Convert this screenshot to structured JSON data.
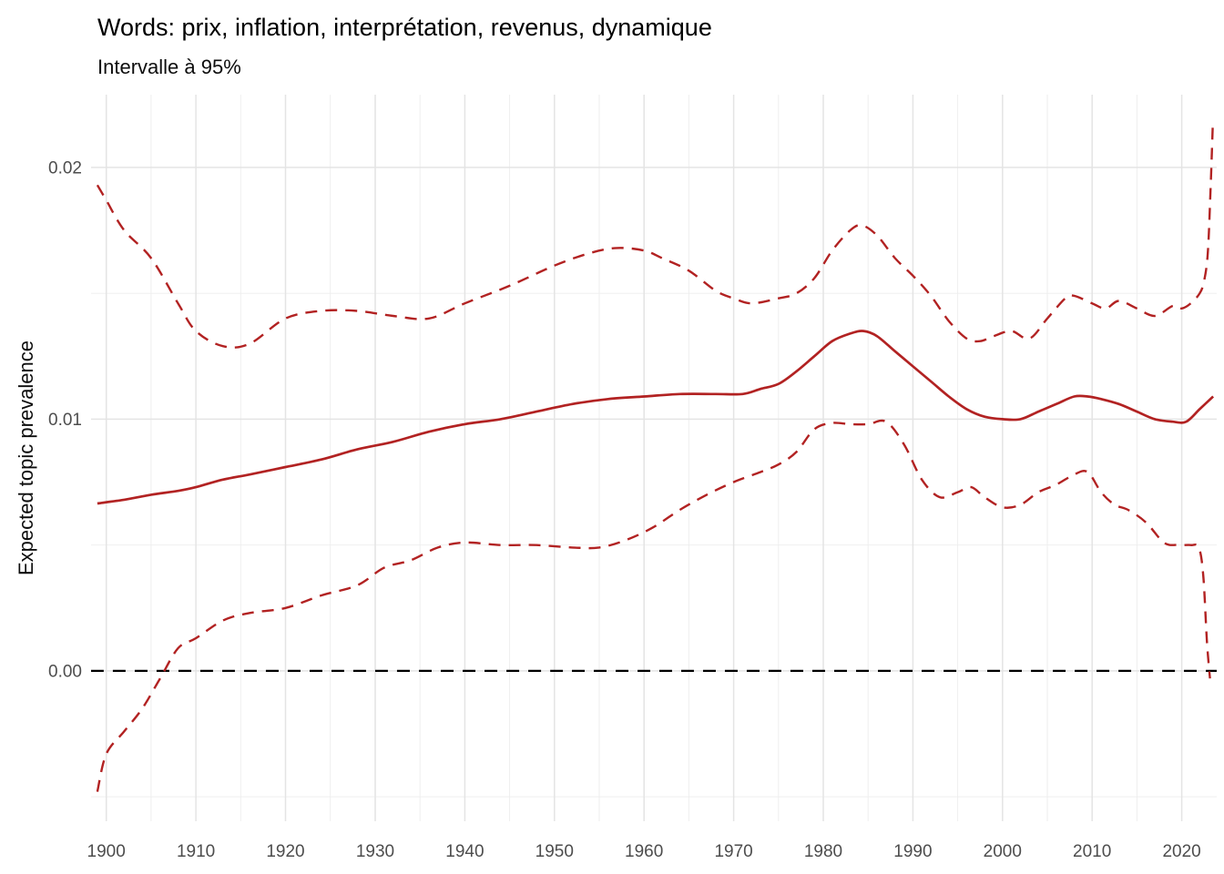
{
  "chart_data": {
    "type": "line",
    "title": "Words: prix, inflation, interprétation, revenus, dynamique",
    "subtitle": "Intervalle à 95%",
    "xlabel": "",
    "ylabel": "Expected topic prevalence",
    "legend_position": "none",
    "grid": "major+minor",
    "xlim": [
      1898.3,
      2023.9
    ],
    "ylim": [
      -0.00597,
      0.02289
    ],
    "x_ticks": [
      {
        "v": 1900,
        "label": "1900"
      },
      {
        "v": 1910,
        "label": "1910"
      },
      {
        "v": 1920,
        "label": "1920"
      },
      {
        "v": 1930,
        "label": "1930"
      },
      {
        "v": 1940,
        "label": "1940"
      },
      {
        "v": 1950,
        "label": "1950"
      },
      {
        "v": 1960,
        "label": "1960"
      },
      {
        "v": 1970,
        "label": "1970"
      },
      {
        "v": 1980,
        "label": "1980"
      },
      {
        "v": 1990,
        "label": "1990"
      },
      {
        "v": 2000,
        "label": "2000"
      },
      {
        "v": 2010,
        "label": "2010"
      },
      {
        "v": 2020,
        "label": "2020"
      }
    ],
    "y_ticks": [
      {
        "v": 0.0,
        "label": "0.00"
      },
      {
        "v": 0.01,
        "label": "0.01"
      },
      {
        "v": 0.02,
        "label": "0.02"
      }
    ],
    "x_minor": [
      1905,
      1915,
      1925,
      1935,
      1945,
      1955,
      1965,
      1975,
      1985,
      1995,
      2005,
      2015
    ],
    "y_minor": [
      -0.005,
      0.005,
      0.015
    ],
    "colors": {
      "series_red": "#B22222",
      "reference_black": "#000000",
      "grid_major": "#E4E4E4",
      "grid_minor": "#EDEDED",
      "tick_text": "#4D4D4D",
      "title_text": "#000000"
    },
    "series": [
      {
        "name": "zero-reference-line",
        "style": "dashed",
        "dash": [
          14,
          10
        ],
        "width": 2.3,
        "color": "#000000",
        "points": [
          [
            1898.3,
            0
          ],
          [
            1960,
            0
          ],
          [
            2023.9,
            0
          ]
        ]
      },
      {
        "name": "upper-confidence-bound",
        "style": "dashed",
        "dash": [
          13,
          9
        ],
        "width": 2.4,
        "color": "#B22222",
        "points": [
          [
            1899,
            0.0193
          ],
          [
            1900,
            0.0187
          ],
          [
            1902,
            0.0175
          ],
          [
            1905,
            0.0164
          ],
          [
            1908,
            0.0146
          ],
          [
            1910,
            0.0135
          ],
          [
            1913,
            0.0129
          ],
          [
            1916,
            0.013
          ],
          [
            1920,
            0.014
          ],
          [
            1924,
            0.0143
          ],
          [
            1928,
            0.0143
          ],
          [
            1932,
            0.0141
          ],
          [
            1936,
            0.014
          ],
          [
            1940,
            0.0146
          ],
          [
            1945,
            0.0153
          ],
          [
            1950,
            0.0161
          ],
          [
            1954,
            0.0166
          ],
          [
            1957,
            0.0168
          ],
          [
            1960,
            0.0167
          ],
          [
            1962,
            0.0164
          ],
          [
            1965,
            0.0159
          ],
          [
            1968,
            0.0151
          ],
          [
            1970,
            0.0148
          ],
          [
            1972,
            0.0146
          ],
          [
            1975,
            0.0148
          ],
          [
            1977,
            0.015
          ],
          [
            1979,
            0.0156
          ],
          [
            1981,
            0.0167
          ],
          [
            1983,
            0.0175
          ],
          [
            1984.3,
            0.0177
          ],
          [
            1986,
            0.0173
          ],
          [
            1988,
            0.0164
          ],
          [
            1990,
            0.0157
          ],
          [
            1992,
            0.0149
          ],
          [
            1994,
            0.0139
          ],
          [
            1996,
            0.0132
          ],
          [
            1997.5,
            0.0131
          ],
          [
            1999,
            0.0133
          ],
          [
            2001,
            0.0135
          ],
          [
            2003,
            0.0132
          ],
          [
            2005,
            0.014
          ],
          [
            2007,
            0.0148
          ],
          [
            2008,
            0.0149
          ],
          [
            2010,
            0.0146
          ],
          [
            2011.5,
            0.0144
          ],
          [
            2013,
            0.0147
          ],
          [
            2015,
            0.0144
          ],
          [
            2017,
            0.0141
          ],
          [
            2019,
            0.0145
          ],
          [
            2020,
            0.0144
          ],
          [
            2021,
            0.0146
          ],
          [
            2022,
            0.015
          ],
          [
            2022.5,
            0.0155
          ],
          [
            2022.9,
            0.0166
          ],
          [
            2023.2,
            0.019
          ],
          [
            2023.45,
            0.0216
          ]
        ]
      },
      {
        "name": "mean-topic-prevalence",
        "style": "solid",
        "dash": null,
        "width": 2.7,
        "color": "#B22222",
        "points": [
          [
            1899,
            0.00665
          ],
          [
            1902,
            0.0068
          ],
          [
            1905,
            0.007
          ],
          [
            1908,
            0.00715
          ],
          [
            1910,
            0.0073
          ],
          [
            1913,
            0.0076
          ],
          [
            1916,
            0.0078
          ],
          [
            1920,
            0.0081
          ],
          [
            1924,
            0.0084
          ],
          [
            1928,
            0.0088
          ],
          [
            1932,
            0.0091
          ],
          [
            1936,
            0.0095
          ],
          [
            1940,
            0.0098
          ],
          [
            1944,
            0.01
          ],
          [
            1948,
            0.0103
          ],
          [
            1952,
            0.0106
          ],
          [
            1956,
            0.0108
          ],
          [
            1960,
            0.0109
          ],
          [
            1964,
            0.011
          ],
          [
            1968,
            0.011
          ],
          [
            1971,
            0.011
          ],
          [
            1973,
            0.0112
          ],
          [
            1975,
            0.0114
          ],
          [
            1977,
            0.0119
          ],
          [
            1979,
            0.0125
          ],
          [
            1981,
            0.0131
          ],
          [
            1983,
            0.0134
          ],
          [
            1984.5,
            0.0135
          ],
          [
            1986,
            0.0133
          ],
          [
            1988,
            0.0127
          ],
          [
            1990,
            0.0121
          ],
          [
            1992,
            0.0115
          ],
          [
            1994,
            0.0109
          ],
          [
            1996,
            0.0104
          ],
          [
            1998,
            0.0101
          ],
          [
            2000,
            0.01
          ],
          [
            2002,
            0.01
          ],
          [
            2004,
            0.0103
          ],
          [
            2006,
            0.0106
          ],
          [
            2008,
            0.0109
          ],
          [
            2009.5,
            0.0109
          ],
          [
            2011,
            0.0108
          ],
          [
            2013,
            0.0106
          ],
          [
            2015,
            0.0103
          ],
          [
            2017,
            0.01
          ],
          [
            2019,
            0.0099
          ],
          [
            2020.5,
            0.0099
          ],
          [
            2022,
            0.0104
          ],
          [
            2023.5,
            0.0109
          ]
        ]
      },
      {
        "name": "lower-confidence-bound",
        "style": "dashed",
        "dash": [
          13,
          9
        ],
        "width": 2.4,
        "color": "#B22222",
        "points": [
          [
            1899,
            -0.0048
          ],
          [
            1900,
            -0.0033
          ],
          [
            1902,
            -0.0024
          ],
          [
            1904,
            -0.0015
          ],
          [
            1906,
            -0.0003
          ],
          [
            1908,
            0.0009
          ],
          [
            1910,
            0.0013
          ],
          [
            1913,
            0.002
          ],
          [
            1916,
            0.0023
          ],
          [
            1920,
            0.0025
          ],
          [
            1924,
            0.003
          ],
          [
            1928,
            0.0034
          ],
          [
            1931,
            0.0041
          ],
          [
            1934,
            0.0044
          ],
          [
            1937,
            0.0049
          ],
          [
            1940,
            0.0051
          ],
          [
            1944,
            0.005
          ],
          [
            1948,
            0.005
          ],
          [
            1952,
            0.0049
          ],
          [
            1955,
            0.0049
          ],
          [
            1958,
            0.0052
          ],
          [
            1961,
            0.0057
          ],
          [
            1964,
            0.0064
          ],
          [
            1967,
            0.007
          ],
          [
            1970,
            0.0075
          ],
          [
            1973,
            0.0079
          ],
          [
            1975,
            0.0082
          ],
          [
            1977,
            0.0087
          ],
          [
            1979,
            0.0096
          ],
          [
            1981,
            0.00985
          ],
          [
            1983,
            0.0098
          ],
          [
            1985,
            0.0098
          ],
          [
            1987,
            0.0099
          ],
          [
            1989,
            0.009
          ],
          [
            1991,
            0.0076
          ],
          [
            1993,
            0.0069
          ],
          [
            1995,
            0.0071
          ],
          [
            1996.5,
            0.0073
          ],
          [
            1998,
            0.0069
          ],
          [
            2000,
            0.0065
          ],
          [
            2002,
            0.0066
          ],
          [
            2004,
            0.0071
          ],
          [
            2006,
            0.0074
          ],
          [
            2008,
            0.0078
          ],
          [
            2009.5,
            0.0079
          ],
          [
            2011,
            0.0071
          ],
          [
            2012.5,
            0.0066
          ],
          [
            2014,
            0.0064
          ],
          [
            2016,
            0.0059
          ],
          [
            2018,
            0.0051
          ],
          [
            2019.5,
            0.005
          ],
          [
            2021,
            0.005
          ],
          [
            2021.9,
            0.0049
          ],
          [
            2022.4,
            0.0038
          ],
          [
            2022.8,
            0.0012
          ],
          [
            2023.15,
            -0.0003
          ]
        ]
      }
    ]
  }
}
